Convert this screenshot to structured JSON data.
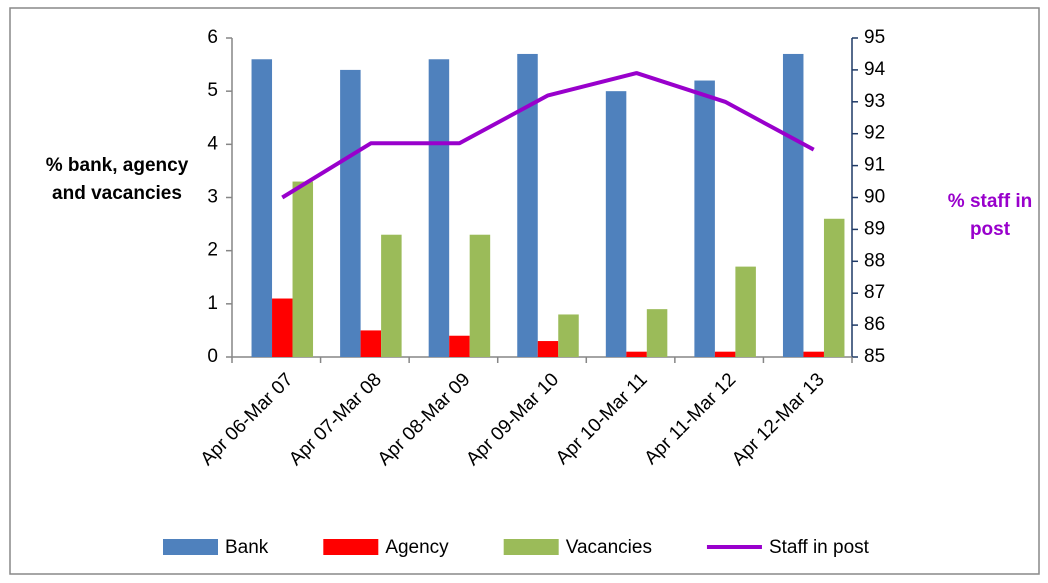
{
  "chart_data": {
    "type": "bar",
    "categories": [
      "Apr 06-Mar 07",
      "Apr 07-Mar 08",
      "Apr 08-Mar 09",
      "Apr 09-Mar 10",
      "Apr 10-Mar 11",
      "Apr 11-Mar 12",
      "Apr 12-Mar 13"
    ],
    "series": [
      {
        "name": "Bank",
        "color": "#4f81bd",
        "type": "bar",
        "values": [
          5.6,
          5.4,
          5.6,
          5.7,
          5.0,
          5.2,
          5.7
        ]
      },
      {
        "name": "Agency",
        "color": "#ff0000",
        "type": "bar",
        "values": [
          1.1,
          0.5,
          0.4,
          0.3,
          0.1,
          0.1,
          0.1
        ]
      },
      {
        "name": "Vacancies",
        "color": "#9bbb59",
        "type": "bar",
        "values": [
          3.3,
          2.3,
          2.3,
          0.8,
          0.9,
          1.7,
          2.6
        ]
      },
      {
        "name": "Staff in post",
        "color": "#9900cc",
        "type": "line",
        "axis": "y2",
        "values": [
          90.0,
          91.7,
          91.7,
          93.2,
          93.9,
          93.0,
          91.5
        ]
      }
    ],
    "ylabel": "% bank, agency and vacancies",
    "y2label": "% staff in post",
    "ylim": [
      0,
      6
    ],
    "yticks": [
      0,
      1,
      2,
      3,
      4,
      5,
      6
    ],
    "y2lim": [
      85,
      95
    ],
    "y2ticks": [
      85,
      86,
      87,
      88,
      89,
      90,
      91,
      92,
      93,
      94,
      95
    ],
    "grid": false,
    "legend": "bottom"
  }
}
